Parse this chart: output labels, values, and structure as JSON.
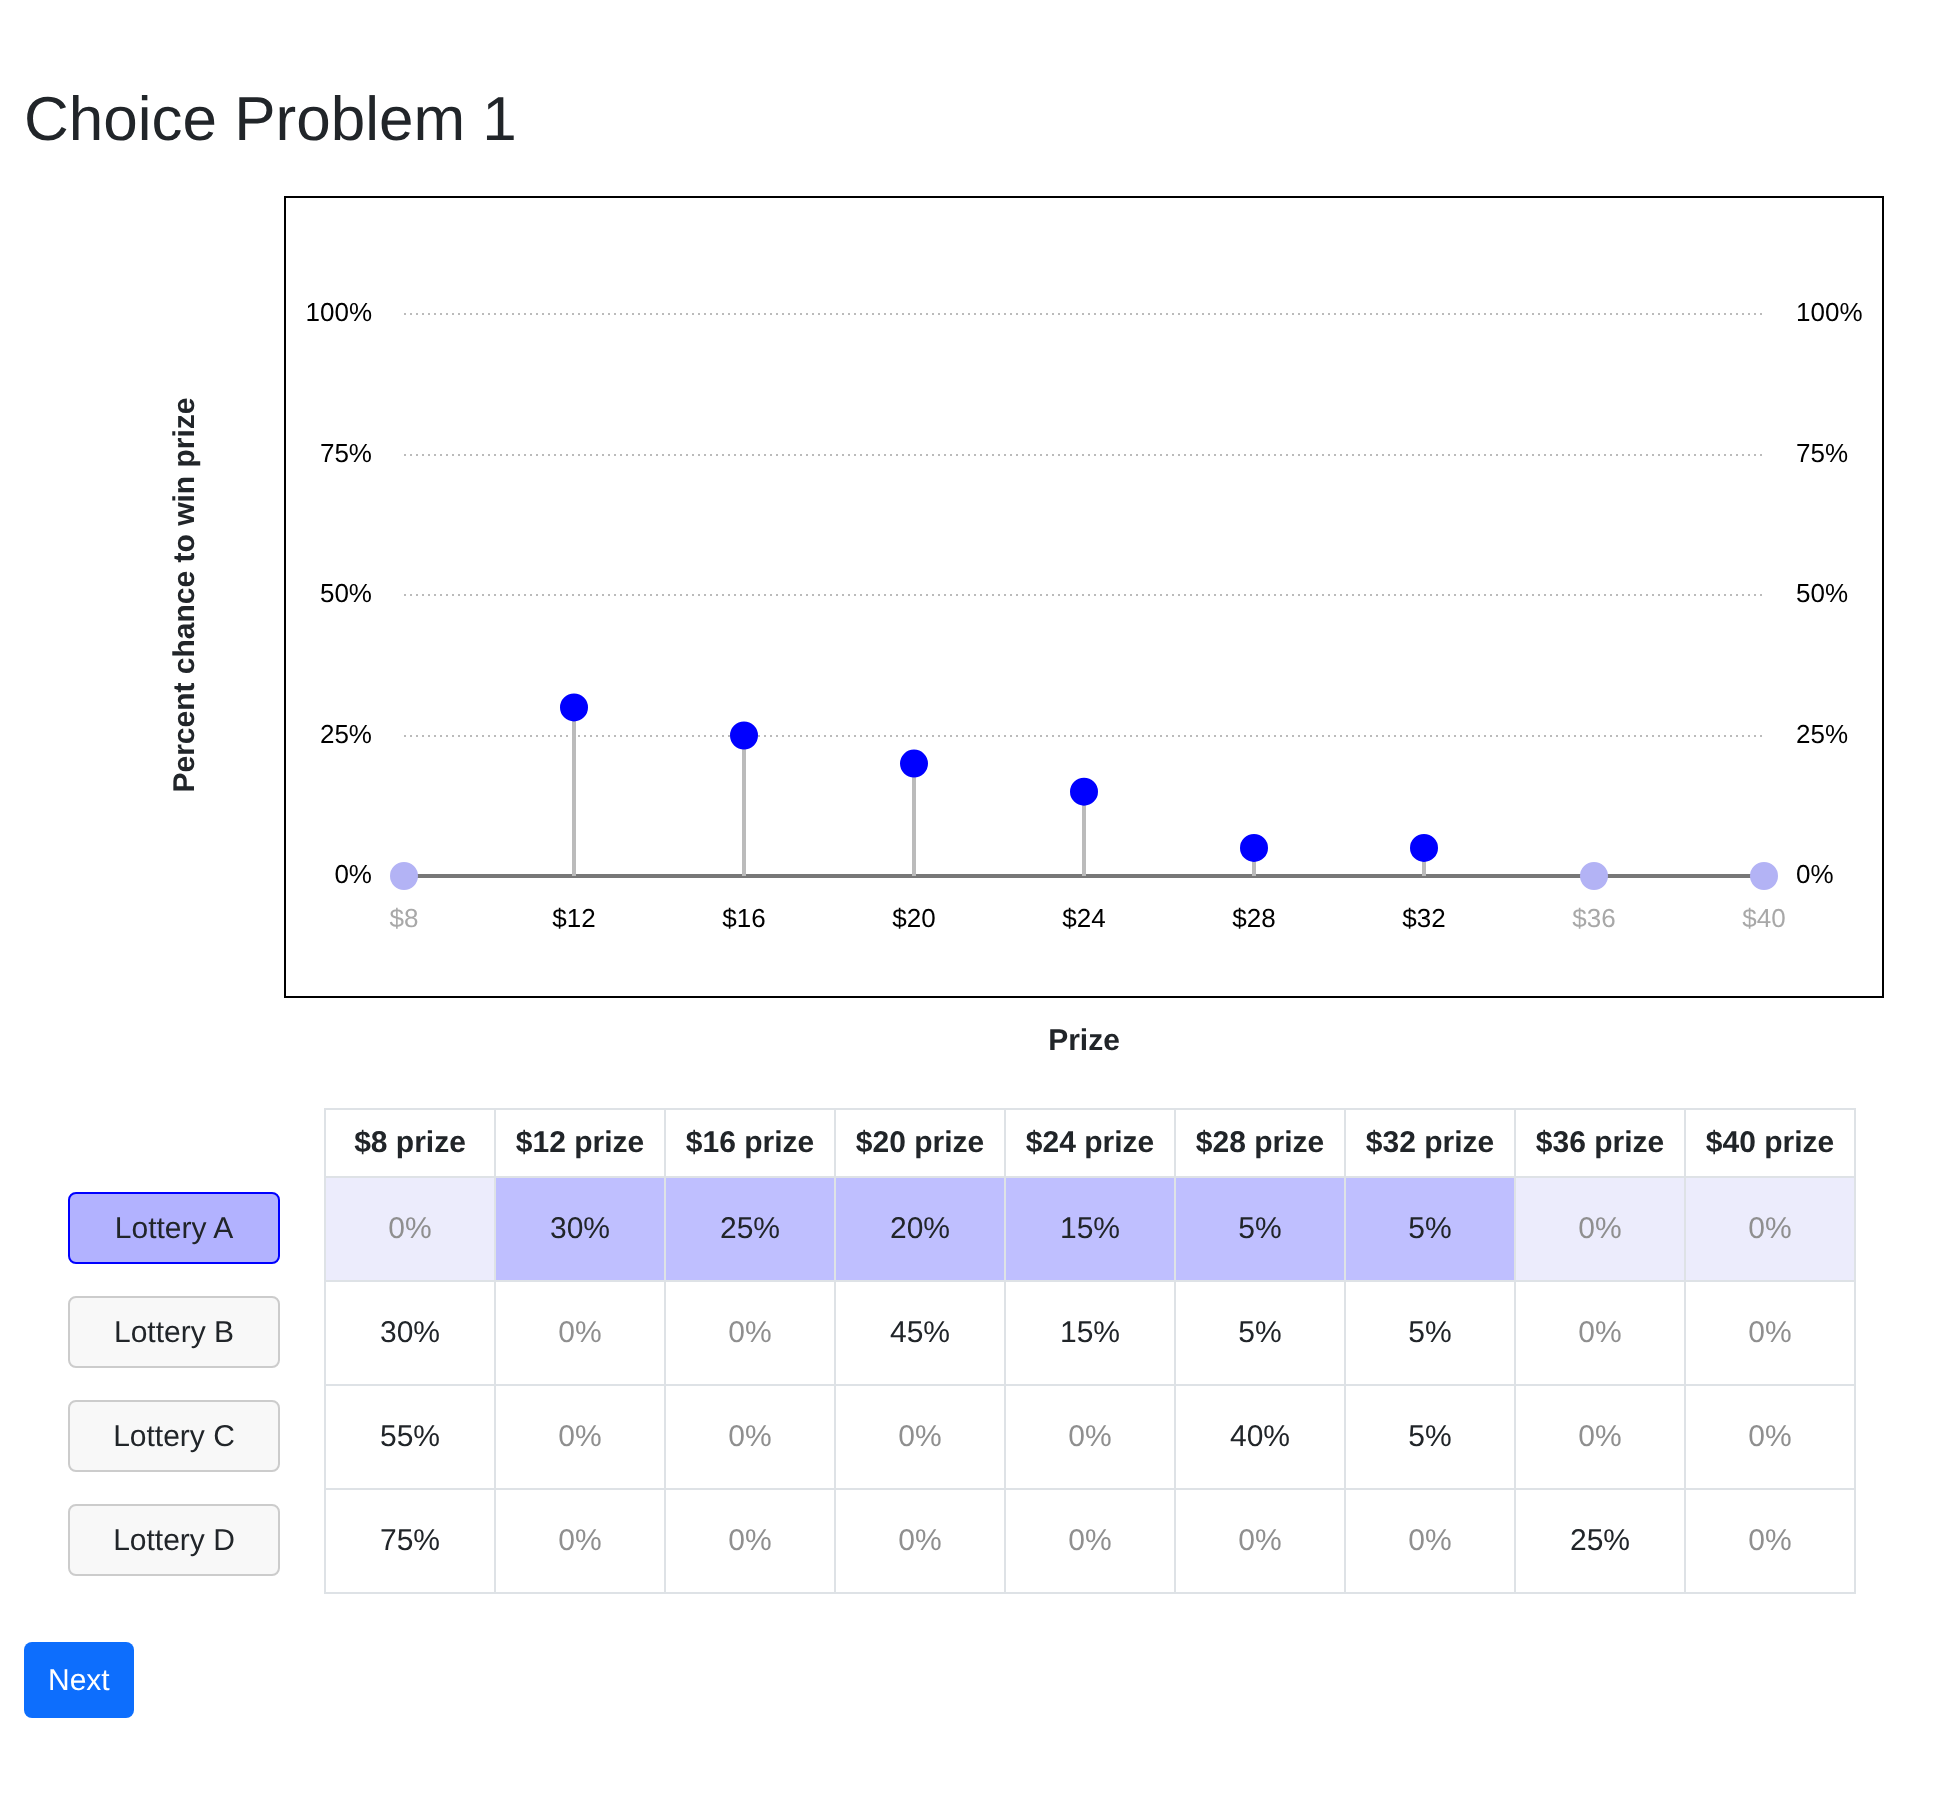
{
  "chart_data": [
    {
      "type": "lollipop",
      "title": "Choice Problem 1",
      "xlabel": "Prize",
      "ylabel": "Percent chance to win prize",
      "categories": [
        "$8",
        "$12",
        "$16",
        "$20",
        "$24",
        "$28",
        "$32",
        "$36",
        "$40"
      ],
      "values": [
        0,
        30,
        25,
        20,
        15,
        5,
        5,
        0,
        0
      ],
      "colors": [
        "#b3b3f5",
        "#0000ff",
        "#0000ff",
        "#0000ff",
        "#0000ff",
        "#0000ff",
        "#0000ff",
        "#b3b3f5",
        "#b3b3f5"
      ],
      "ylim": [
        0,
        100
      ],
      "yticks": [
        {
          "value": 0,
          "label": "0%"
        },
        {
          "value": 25,
          "label": "25%"
        },
        {
          "value": 50,
          "label": "50%"
        },
        {
          "value": 75,
          "label": "75%"
        },
        {
          "value": 100,
          "label": "100%"
        }
      ],
      "y2lim": [
        0,
        100
      ],
      "y2ticks": [
        {
          "value": 0,
          "label": "0%"
        },
        {
          "value": 25,
          "label": "25%"
        },
        {
          "value": 50,
          "label": "50%"
        },
        {
          "value": 75,
          "label": "75%"
        },
        {
          "value": 100,
          "label": "100%"
        }
      ],
      "grid": "y",
      "marker": "circle"
    },
    {
      "type": "heatmap",
      "categories": [
        "$8 prize",
        "$12 prize",
        "$16 prize",
        "$20 prize",
        "$24 prize",
        "$28 prize",
        "$32 prize",
        "$36 prize",
        "$40 prize"
      ],
      "y_categories": [
        "Lottery A",
        "Lottery B",
        "Lottery C",
        "Lottery D"
      ],
      "cells": [
        [
          0,
          30,
          25,
          20,
          15,
          5,
          5,
          0,
          0
        ],
        [
          30,
          0,
          0,
          45,
          15,
          5,
          5,
          0,
          0
        ],
        [
          55,
          0,
          0,
          0,
          0,
          40,
          5,
          0,
          0
        ],
        [
          75,
          0,
          0,
          0,
          0,
          0,
          0,
          25,
          0
        ]
      ],
      "cell_labels": [
        [
          "0%",
          "30%",
          "25%",
          "20%",
          "15%",
          "5%",
          "5%",
          "0%",
          "0%"
        ],
        [
          "30%",
          "0%",
          "0%",
          "45%",
          "15%",
          "5%",
          "5%",
          "0%",
          "0%"
        ],
        [
          "55%",
          "0%",
          "0%",
          "0%",
          "0%",
          "40%",
          "5%",
          "0%",
          "0%"
        ],
        [
          "75%",
          "0%",
          "0%",
          "0%",
          "0%",
          "0%",
          "0%",
          "25%",
          "0%"
        ]
      ],
      "annotations": [
        "Next"
      ]
    }
  ]
}
